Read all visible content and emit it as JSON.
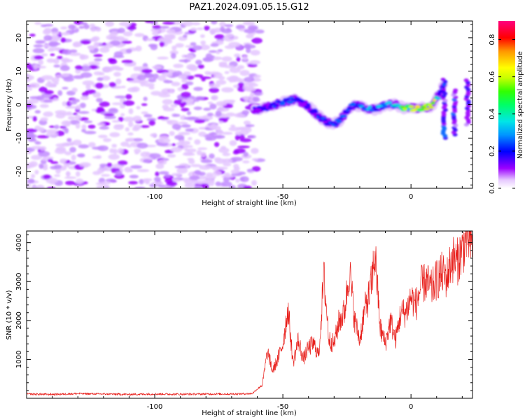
{
  "title": "PAZ1.2024.091.05.15.G12",
  "chart_data": [
    {
      "type": "heatmap",
      "xlabel": "Height of straight line (km)",
      "ylabel": "Frequency (Hz)",
      "xlim": [
        -150,
        24
      ],
      "ylim": [
        -25,
        25
      ],
      "x_ticks": [
        -100,
        -50,
        0
      ],
      "y_ticks": [
        -20,
        -10,
        0,
        10,
        20
      ],
      "colorbar": {
        "label": "Normalized spectral amplitude",
        "range": [
          0.0,
          0.9
        ],
        "ticks": [
          0.0,
          0.2,
          0.4,
          0.6,
          0.8
        ],
        "colormap": [
          "#ffffff",
          "#9b00ff",
          "#0000ff",
          "#00c8ff",
          "#00ff80",
          "#40ff00",
          "#ffff00",
          "#ff8000",
          "#ff0000",
          "#ff0080"
        ]
      },
      "noise_region_x": [
        -150,
        -61
      ],
      "signal_track": [
        {
          "x": -61,
          "y": -1.5,
          "a": 0.2
        },
        {
          "x": -57,
          "y": -1,
          "a": 0.25
        },
        {
          "x": -53,
          "y": 0,
          "a": 0.3
        },
        {
          "x": -49,
          "y": 1,
          "a": 0.3
        },
        {
          "x": -45,
          "y": 1.5,
          "a": 0.3
        },
        {
          "x": -41,
          "y": 0,
          "a": 0.25
        },
        {
          "x": -38,
          "y": -2,
          "a": 0.25
        },
        {
          "x": -35,
          "y": -4,
          "a": 0.3
        },
        {
          "x": -31,
          "y": -6,
          "a": 0.3
        },
        {
          "x": -28,
          "y": -5,
          "a": 0.3
        },
        {
          "x": -25,
          "y": -2,
          "a": 0.3
        },
        {
          "x": -22,
          "y": 0,
          "a": 0.3
        },
        {
          "x": -18,
          "y": -1,
          "a": 0.35
        },
        {
          "x": -14,
          "y": -1.5,
          "a": 0.35
        },
        {
          "x": -10,
          "y": 0,
          "a": 0.4
        },
        {
          "x": -6,
          "y": 0,
          "a": 0.45
        },
        {
          "x": -3,
          "y": -1,
          "a": 0.6
        },
        {
          "x": 0,
          "y": -1,
          "a": 0.6
        },
        {
          "x": 4,
          "y": -1,
          "a": 0.75
        },
        {
          "x": 8,
          "y": -0.5,
          "a": 0.85
        },
        {
          "x": 11,
          "y": 3,
          "a": 0.35
        },
        {
          "x": 13,
          "y": 7,
          "a": 0.3
        }
      ]
    },
    {
      "type": "line",
      "xlabel": "Height of straight line (km)",
      "ylabel": "SNR (10 * v/v)",
      "xlim": [
        -150,
        24
      ],
      "ylim": [
        0,
        4300
      ],
      "x_ticks": [
        -100,
        -50,
        0
      ],
      "y_ticks": [
        1000,
        2000,
        3000,
        4000
      ],
      "color": "#e8201c",
      "series": [
        {
          "x": [
            -150,
            -140,
            -130,
            -120,
            -110,
            -100,
            -90,
            -80,
            -70,
            -62,
            -58,
            -56,
            -54,
            -52,
            -50,
            -48,
            -46,
            -44,
            -42,
            -40,
            -38,
            -36,
            -34,
            -32,
            -30,
            -28,
            -26,
            -24,
            -22,
            -20,
            -18,
            -16,
            -14,
            -12,
            -10,
            -8,
            -6,
            -4,
            -2,
            0,
            2,
            4,
            6,
            8,
            10,
            12,
            14,
            16,
            18,
            20,
            22,
            24
          ],
          "y": [
            110,
            100,
            120,
            110,
            100,
            110,
            105,
            110,
            110,
            120,
            350,
            1200,
            700,
            1000,
            1400,
            2300,
            900,
            1500,
            1000,
            1300,
            1400,
            1100,
            3150,
            1500,
            1400,
            2000,
            2200,
            3300,
            2000,
            1500,
            2300,
            2700,
            3700,
            1800,
            1400,
            2000,
            1500,
            2200,
            2200,
            2600,
            2400,
            2900,
            3000,
            2800,
            3050,
            3200,
            3100,
            3600,
            3500,
            3800,
            4200,
            3850
          ]
        }
      ]
    }
  ]
}
